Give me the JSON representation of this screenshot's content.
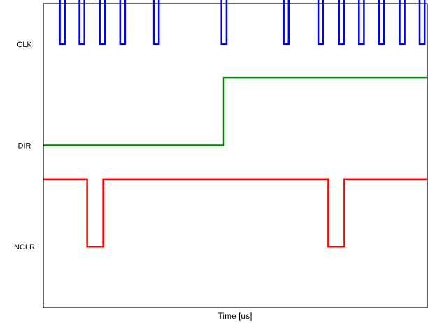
{
  "chart_data": {
    "type": "line",
    "xlabel": "Time [us]",
    "ylabel": "",
    "xlim": [
      0,
      100
    ],
    "ylim": [
      0,
      9
    ],
    "grid": false,
    "y_ticks": [
      {
        "label": "CLK",
        "value": 7.8
      },
      {
        "label": "DIR",
        "value": 4.8
      },
      {
        "label": "NCLR",
        "value": 1.8
      }
    ],
    "series": [
      {
        "name": "",
        "signal": "CLK",
        "color": "#0000ff",
        "x": [
          0,
          4.3,
          4.3,
          5.6,
          5.6,
          9.4,
          9.4,
          10.7,
          10.7,
          14.7,
          14.7,
          16.0,
          16.0,
          20.0,
          20.0,
          21.3,
          21.3,
          28.8,
          28.8,
          30.1,
          30.1,
          46.4,
          46.4,
          47.7,
          47.7,
          62.6,
          62.6,
          63.9,
          63.9,
          71.6,
          71.6,
          72.9,
          72.9,
          77.0,
          77.0,
          78.3,
          78.3,
          82.2,
          82.2,
          83.5,
          83.5,
          87.4,
          87.4,
          88.7,
          88.7,
          92.8,
          92.8,
          94.1,
          94.1,
          98.0,
          98.0,
          99.3,
          99.3,
          100
        ],
        "y": [
          9.8,
          9.8,
          7.8,
          7.8,
          9.8,
          9.8,
          7.8,
          7.8,
          9.8,
          9.8,
          7.8,
          7.8,
          9.8,
          9.8,
          7.8,
          7.8,
          9.8,
          9.8,
          7.8,
          7.8,
          9.8,
          9.8,
          7.8,
          7.8,
          9.8,
          9.8,
          7.8,
          7.8,
          9.8,
          9.8,
          7.8,
          7.8,
          9.8,
          9.8,
          7.8,
          7.8,
          9.8,
          9.8,
          7.8,
          7.8,
          9.8,
          9.8,
          7.8,
          7.8,
          9.8,
          9.8,
          7.8,
          7.8,
          9.8,
          9.8,
          7.8,
          7.8,
          9.8,
          9.8
        ]
      },
      {
        "name": "",
        "signal": "DIR",
        "color": "#008000",
        "x": [
          0,
          47.0,
          47.0,
          100
        ],
        "y": [
          4.8,
          4.8,
          6.8,
          6.8
        ]
      },
      {
        "name": "",
        "signal": "NCLR",
        "color": "#ff0000",
        "x": [
          0,
          11.4,
          11.4,
          15.6,
          15.6,
          74.2,
          74.2,
          78.4,
          78.4,
          100
        ],
        "y": [
          3.8,
          3.8,
          1.8,
          1.8,
          3.8,
          3.8,
          1.8,
          1.8,
          3.8,
          3.8
        ]
      }
    ]
  }
}
